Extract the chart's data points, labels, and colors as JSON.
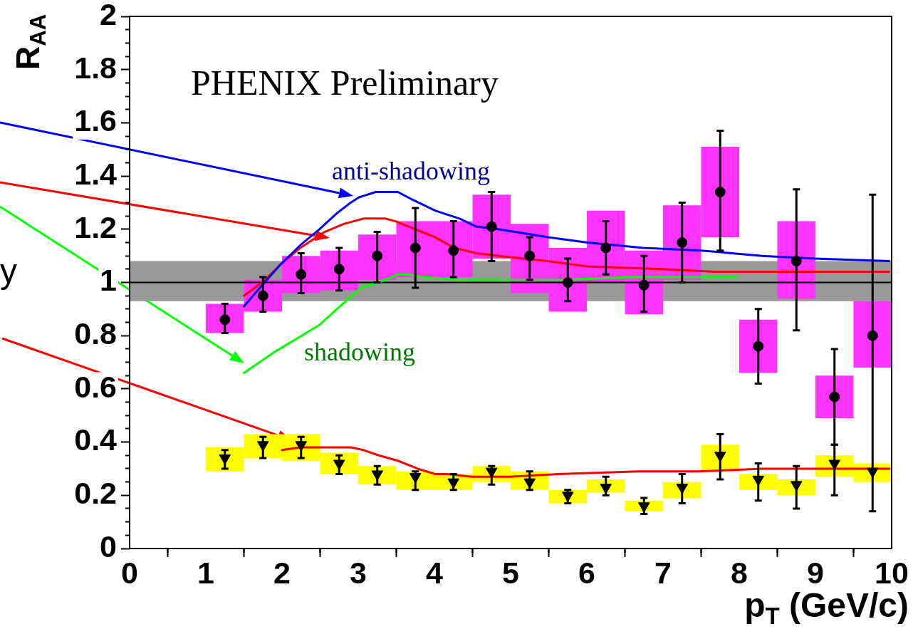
{
  "chart_data": {
    "type": "scatter",
    "xlabel": "p$_{T}$ (GeV/c)",
    "ylabel": "R$_{AA}$",
    "xlim": [
      0,
      10
    ],
    "ylim": [
      0,
      2
    ],
    "xticks": [
      0,
      {
        "value": 0.5,
        "label": null
      },
      1,
      {
        "value": 1.5,
        "label": null
      },
      2,
      {
        "value": 2.5,
        "label": null
      },
      3,
      {
        "value": 3.5,
        "label": null
      },
      4,
      {
        "value": 4.5,
        "label": null
      },
      5,
      {
        "value": 5.5,
        "label": null
      },
      6,
      {
        "value": 6.5,
        "label": null
      },
      7,
      {
        "value": 7.5,
        "label": null
      },
      8,
      {
        "value": 8.5,
        "label": null
      },
      9,
      {
        "value": 9.5,
        "label": null
      },
      10
    ],
    "yticks": [
      0,
      {
        "value": 0.05,
        "label": null
      },
      {
        "value": 0.1,
        "label": null
      },
      {
        "value": 0.15,
        "label": null
      },
      0.2,
      {
        "value": 0.25,
        "label": null
      },
      {
        "value": 0.3,
        "label": null
      },
      {
        "value": 0.35,
        "label": null
      },
      0.4,
      {
        "value": 0.45,
        "label": null
      },
      {
        "value": 0.5,
        "label": null
      },
      {
        "value": 0.55,
        "label": null
      },
      0.6,
      {
        "value": 0.65,
        "label": null
      },
      {
        "value": 0.7,
        "label": null
      },
      {
        "value": 0.75,
        "label": null
      },
      0.8,
      {
        "value": 0.85,
        "label": null
      },
      {
        "value": 0.9,
        "label": null
      },
      {
        "value": 0.95,
        "label": null
      },
      1,
      {
        "value": 1.05,
        "label": null
      },
      {
        "value": 1.1,
        "label": null
      },
      {
        "value": 1.15,
        "label": null
      },
      1.2,
      {
        "value": 1.25,
        "label": null
      },
      {
        "value": 1.3,
        "label": null
      },
      {
        "value": 1.35,
        "label": null
      },
      1.4,
      {
        "value": 1.45,
        "label": null
      },
      {
        "value": 1.5,
        "label": null
      },
      {
        "value": 1.55,
        "label": null
      },
      1.6,
      {
        "value": 1.65,
        "label": null
      },
      {
        "value": 1.7,
        "label": null
      },
      {
        "value": 1.75,
        "label": null
      },
      1.8,
      {
        "value": 1.85,
        "label": null
      },
      {
        "value": 1.9,
        "label": null
      },
      {
        "value": 1.95,
        "label": null
      },
      2
    ],
    "bands": [
      {
        "axis": "y",
        "from": 0.93,
        "to": 1.08,
        "color": "#999999"
      }
    ],
    "ref_lines": [
      {
        "axis": "y",
        "value": 1,
        "color": "#000000"
      }
    ],
    "annotations": [
      "PHENIX Preliminary",
      "y",
      "anti-shadowing",
      "shadowing"
    ],
    "series": [
      {
        "type": "bar",
        "color": "#ff33ff",
        "x": [
          1.25,
          1.75,
          2.25,
          2.75,
          3.25,
          3.75,
          4.25,
          4.75,
          5.25,
          5.75,
          6.25,
          6.75,
          7.25,
          7.75,
          8.25,
          8.75,
          9.25,
          9.75
        ],
        "base": [
          0.81,
          0.89,
          0.96,
          0.97,
          1.01,
          1.02,
          1.02,
          1.09,
          0.96,
          0.89,
          1.0,
          0.88,
          1.01,
          1.17,
          0.66,
          0.94,
          0.49,
          0.68
        ],
        "values": [
          0.11,
          0.12,
          0.14,
          0.15,
          0.17,
          0.21,
          0.21,
          0.24,
          0.26,
          0.24,
          0.27,
          0.24,
          0.28,
          0.34,
          0.2,
          0.29,
          0.16,
          0.25
        ]
      },
      {
        "type": "bar",
        "color": "#ffff00",
        "x": [
          1.25,
          1.75,
          2.25,
          2.75,
          3.25,
          3.75,
          4.25,
          4.75,
          5.25,
          5.75,
          6.25,
          6.75,
          7.25,
          7.75,
          8.25,
          8.75,
          9.25,
          9.75
        ],
        "base": [
          0.29,
          0.34,
          0.33,
          0.28,
          0.24,
          0.22,
          0.22,
          0.25,
          0.22,
          0.17,
          0.21,
          0.14,
          0.19,
          0.29,
          0.22,
          0.2,
          0.27,
          0.25
        ],
        "values": [
          0.09,
          0.09,
          0.1,
          0.08,
          0.07,
          0.07,
          0.06,
          0.06,
          0.07,
          0.05,
          0.05,
          0.04,
          0.06,
          0.1,
          0.06,
          0.06,
          0.08,
          0.07
        ]
      },
      {
        "color": "#000000",
        "marker": "circle",
        "x": [
          1.25,
          1.75,
          2.25,
          2.75,
          3.25,
          3.75,
          4.25,
          4.75,
          5.25,
          5.75,
          6.25,
          6.75,
          7.25,
          7.75,
          8.25,
          8.75,
          9.25,
          9.75
        ],
        "values": [
          0.86,
          0.95,
          1.03,
          1.05,
          1.1,
          1.13,
          1.12,
          1.21,
          1.1,
          1.0,
          1.13,
          0.99,
          1.15,
          1.34,
          0.76,
          1.08,
          0.57,
          0.8
        ],
        "errors": [
          [
            0.81,
            0.92
          ],
          [
            0.89,
            1.02
          ],
          [
            0.96,
            1.11
          ],
          [
            0.97,
            1.13
          ],
          [
            1.0,
            1.19
          ],
          [
            0.98,
            1.28
          ],
          [
            1.02,
            1.23
          ],
          [
            1.08,
            1.34
          ],
          [
            1.01,
            1.17
          ],
          [
            0.93,
            1.09
          ],
          [
            1.03,
            1.23
          ],
          [
            0.89,
            1.1
          ],
          [
            1.0,
            1.3
          ],
          [
            1.12,
            1.57
          ],
          [
            0.62,
            0.9
          ],
          [
            0.82,
            1.35
          ],
          [
            0.39,
            0.75
          ],
          [
            0.14,
            1.33
          ]
        ]
      },
      {
        "color": "#000000",
        "marker": "triangle",
        "x": [
          1.25,
          1.75,
          2.25,
          2.75,
          3.25,
          3.75,
          4.25,
          4.75,
          5.25,
          5.75,
          6.25,
          6.75,
          7.25,
          7.75,
          8.25,
          8.75,
          9.25,
          9.75
        ],
        "values": [
          0.34,
          0.39,
          0.39,
          0.32,
          0.28,
          0.27,
          0.25,
          0.29,
          0.25,
          0.2,
          0.23,
          0.16,
          0.23,
          0.35,
          0.26,
          0.24,
          0.32,
          0.29
        ],
        "errors": [
          [
            0.3,
            0.37
          ],
          [
            0.34,
            0.42
          ],
          [
            0.34,
            0.42
          ],
          [
            0.28,
            0.35
          ],
          [
            0.24,
            0.31
          ],
          [
            0.22,
            0.29
          ],
          [
            0.22,
            0.28
          ],
          [
            0.24,
            0.31
          ],
          [
            0.22,
            0.29
          ],
          [
            0.17,
            0.22
          ],
          [
            0.2,
            0.27
          ],
          [
            0.13,
            0.19
          ],
          [
            0.17,
            0.28
          ],
          [
            0.26,
            0.43
          ],
          [
            0.18,
            0.32
          ],
          [
            0.15,
            0.31
          ],
          [
            0.2,
            0.39
          ],
          null
        ]
      },
      {
        "type": "line",
        "color": "#0000ff",
        "x": [
          1.5,
          1.74,
          1.99,
          2.24,
          2.49,
          2.72,
          2.9,
          3.01,
          3.23,
          3.52,
          3.72,
          4.01,
          4.33,
          4.55,
          4.84,
          5.49,
          6.01,
          6.74,
          7.5,
          8.3,
          8.99,
          9.97
        ],
        "values": [
          0.91,
          0.99,
          1.07,
          1.14,
          1.2,
          1.26,
          1.3,
          1.32,
          1.34,
          1.34,
          1.31,
          1.27,
          1.24,
          1.21,
          1.2,
          1.17,
          1.15,
          1.13,
          1.12,
          1.1,
          1.09,
          1.08
        ]
      },
      {
        "type": "line",
        "color": "#ff0000",
        "x": [
          1.5,
          1.74,
          1.99,
          2.24,
          2.56,
          2.81,
          3.07,
          3.36,
          3.49,
          3.75,
          4.01,
          4.26,
          4.55,
          4.84,
          5.49,
          6.01,
          6.98,
          7.67,
          8.5,
          9.97
        ],
        "values": [
          0.95,
          1.0,
          1.07,
          1.13,
          1.19,
          1.22,
          1.24,
          1.24,
          1.23,
          1.2,
          1.17,
          1.13,
          1.11,
          1.1,
          1.08,
          1.06,
          1.05,
          1.04,
          1.04,
          1.04
        ]
      },
      {
        "type": "line",
        "color": "#00ff00",
        "x": [
          1.5,
          1.91,
          2.49,
          2.72,
          2.88,
          3.04,
          3.27,
          3.52,
          3.65,
          3.85,
          4.33,
          4.84,
          5.7,
          6.57,
          7.26,
          7.97
        ],
        "values": [
          0.66,
          0.74,
          0.84,
          0.9,
          0.94,
          0.98,
          1.0,
          1.03,
          1.03,
          1.02,
          1.01,
          1.01,
          1.01,
          1.02,
          1.02,
          1.02
        ]
      },
      {
        "type": "line",
        "color": "#ff0000",
        "x": [
          2.0,
          2.24,
          2.43,
          2.65,
          2.91,
          3.07,
          3.27,
          3.52,
          3.78,
          4.01,
          4.17,
          4.49,
          5.0,
          5.63,
          6.67,
          7.47,
          8.3,
          9.97
        ],
        "values": [
          0.37,
          0.38,
          0.38,
          0.38,
          0.38,
          0.37,
          0.35,
          0.33,
          0.3,
          0.28,
          0.28,
          0.27,
          0.27,
          0.28,
          0.29,
          0.29,
          0.3,
          0.3
        ]
      }
    ]
  }
}
